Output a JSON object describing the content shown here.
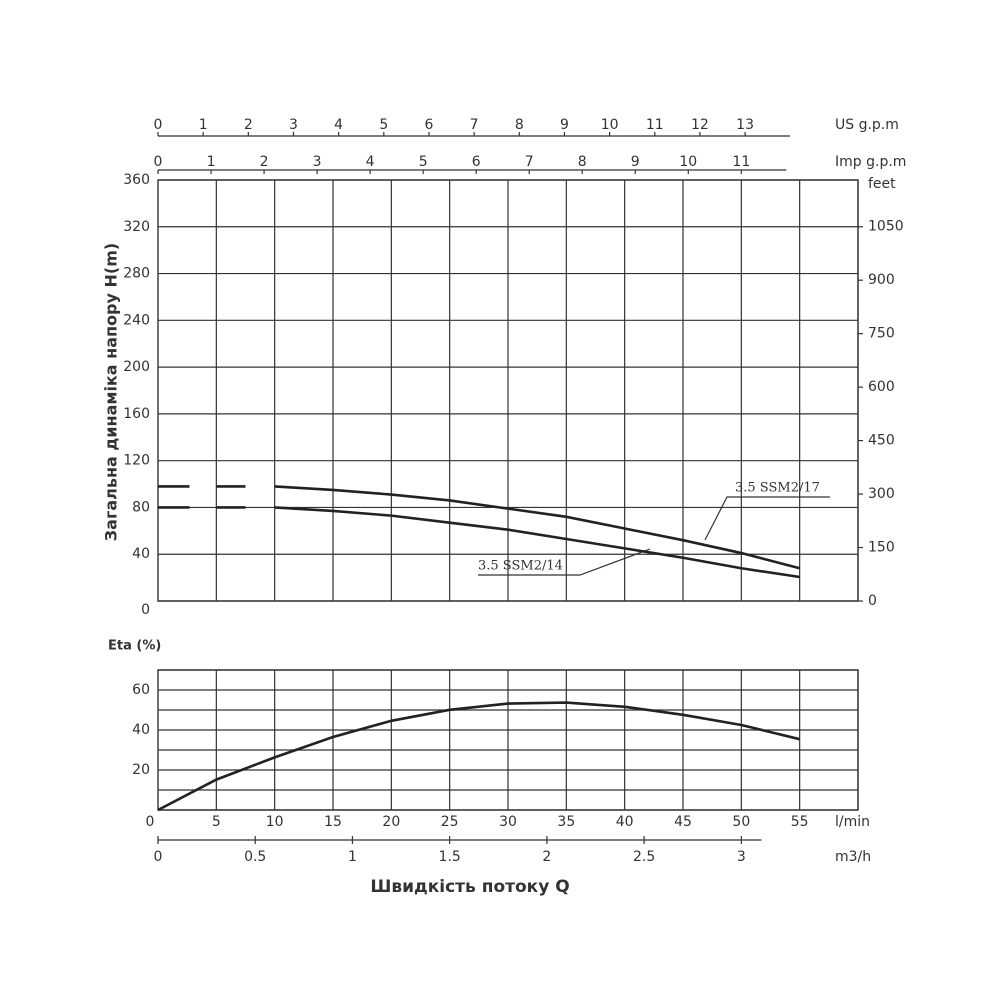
{
  "chart_data": [
    {
      "type": "line",
      "ylabel": "Загальна динаміка напору H(m)",
      "y2label": "feet",
      "xlim": [
        0,
        60
      ],
      "xgrid": [
        5,
        10,
        15,
        20,
        25,
        30,
        35,
        40,
        45,
        50,
        55,
        60
      ],
      "ylim": [
        0,
        360
      ],
      "yticks": [
        0,
        40,
        80,
        120,
        160,
        200,
        240,
        280,
        320,
        360
      ],
      "y2lim": [
        0,
        1181.1
      ],
      "y2ticks": [
        0,
        150,
        300,
        450,
        600,
        750,
        900,
        1050
      ],
      "top_axes": [
        {
          "label": "US g.p.m",
          "lim": [
            0,
            15.5
          ],
          "ticks": [
            0,
            1,
            2,
            3,
            4,
            5,
            6,
            7,
            8,
            9,
            10,
            11,
            12,
            13
          ]
        },
        {
          "label": "Imp g.p.m",
          "lim": [
            0,
            13.2
          ],
          "ticks": [
            0,
            1,
            2,
            3,
            4,
            5,
            6,
            7,
            8,
            9,
            10,
            11
          ]
        }
      ],
      "series": [
        {
          "name": "3.5 SSM2/17",
          "color": "#222222",
          "x": [
            0,
            2.7,
            4,
            5,
            7.5,
            8.7,
            10,
            15,
            20,
            25,
            30,
            35,
            40,
            45,
            50,
            55
          ],
          "values": [
            98,
            98,
            null,
            98,
            98,
            null,
            98,
            95,
            91,
            86,
            79,
            72,
            62,
            52,
            41,
            28
          ]
        },
        {
          "name": "3.5 SSM2/14",
          "color": "#222222",
          "x": [
            0,
            2.7,
            4,
            5,
            7.5,
            8.7,
            10,
            15,
            20,
            25,
            30,
            35,
            40,
            45,
            50,
            55
          ],
          "values": [
            80,
            80,
            null,
            80,
            80,
            null,
            80,
            77,
            73,
            67,
            61,
            53,
            45,
            37,
            28,
            20.5
          ]
        }
      ]
    },
    {
      "type": "line",
      "ylabel": "Eta (%)",
      "xlabel": "Швидкість потоку Q",
      "xunit": "l/min",
      "xlim": [
        0,
        60
      ],
      "xticks": [
        0,
        5,
        10,
        15,
        20,
        25,
        30,
        35,
        40,
        45,
        50,
        55
      ],
      "xgrid": [
        5,
        10,
        15,
        20,
        25,
        30,
        35,
        40,
        45,
        50,
        55,
        60
      ],
      "ylim": [
        0,
        70
      ],
      "yticks": [
        20,
        40,
        60
      ],
      "ygrid": [
        0,
        10,
        20,
        30,
        40,
        50,
        60,
        70
      ],
      "x2": {
        "label": "m3/h",
        "lim": [
          0,
          3.6
        ],
        "ticks": [
          0,
          0.5,
          1,
          1.5,
          2,
          2.5,
          3
        ]
      },
      "series": [
        {
          "color": "#222222",
          "x": [
            0,
            5,
            10,
            15,
            20,
            25,
            30,
            35,
            40,
            45,
            50,
            55
          ],
          "values": [
            0,
            15.2,
            26.3,
            36.5,
            44.6,
            50.1,
            53.2,
            53.7,
            51.6,
            47.6,
            42.5,
            35.4
          ]
        }
      ]
    }
  ]
}
